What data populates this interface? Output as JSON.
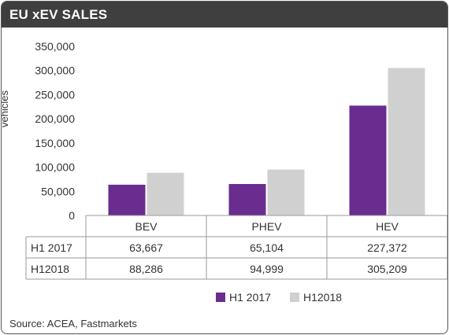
{
  "title": "EU xEV SALES",
  "source": "Source: ACEA, Fastmarkets",
  "colors": {
    "h1_2017": "#6a2c8f",
    "h1_2018": "#d0d0d0"
  },
  "chart_data": {
    "type": "bar",
    "title": "EU xEV SALES",
    "ylabel": "vehicles",
    "xlabel": "",
    "categories": [
      "BEV",
      "PHEV",
      "HEV"
    ],
    "ylim": [
      0,
      350000
    ],
    "yticks": [
      0,
      50000,
      100000,
      150000,
      200000,
      250000,
      300000,
      350000
    ],
    "ytick_labels": [
      "0",
      "50,000",
      "100,000",
      "150,000",
      "200,000",
      "250,000",
      "300,000",
      "350,000"
    ],
    "grid": false,
    "legend_position": "bottom-right",
    "series": [
      {
        "name": "H1 2017",
        "values": [
          63667,
          65104,
          227372
        ],
        "labels": [
          "63,667",
          "65,104",
          "227,372"
        ]
      },
      {
        "name": "H12018",
        "values": [
          88286,
          94999,
          305209
        ],
        "labels": [
          "88,286",
          "94,999",
          "305,209"
        ]
      }
    ]
  }
}
